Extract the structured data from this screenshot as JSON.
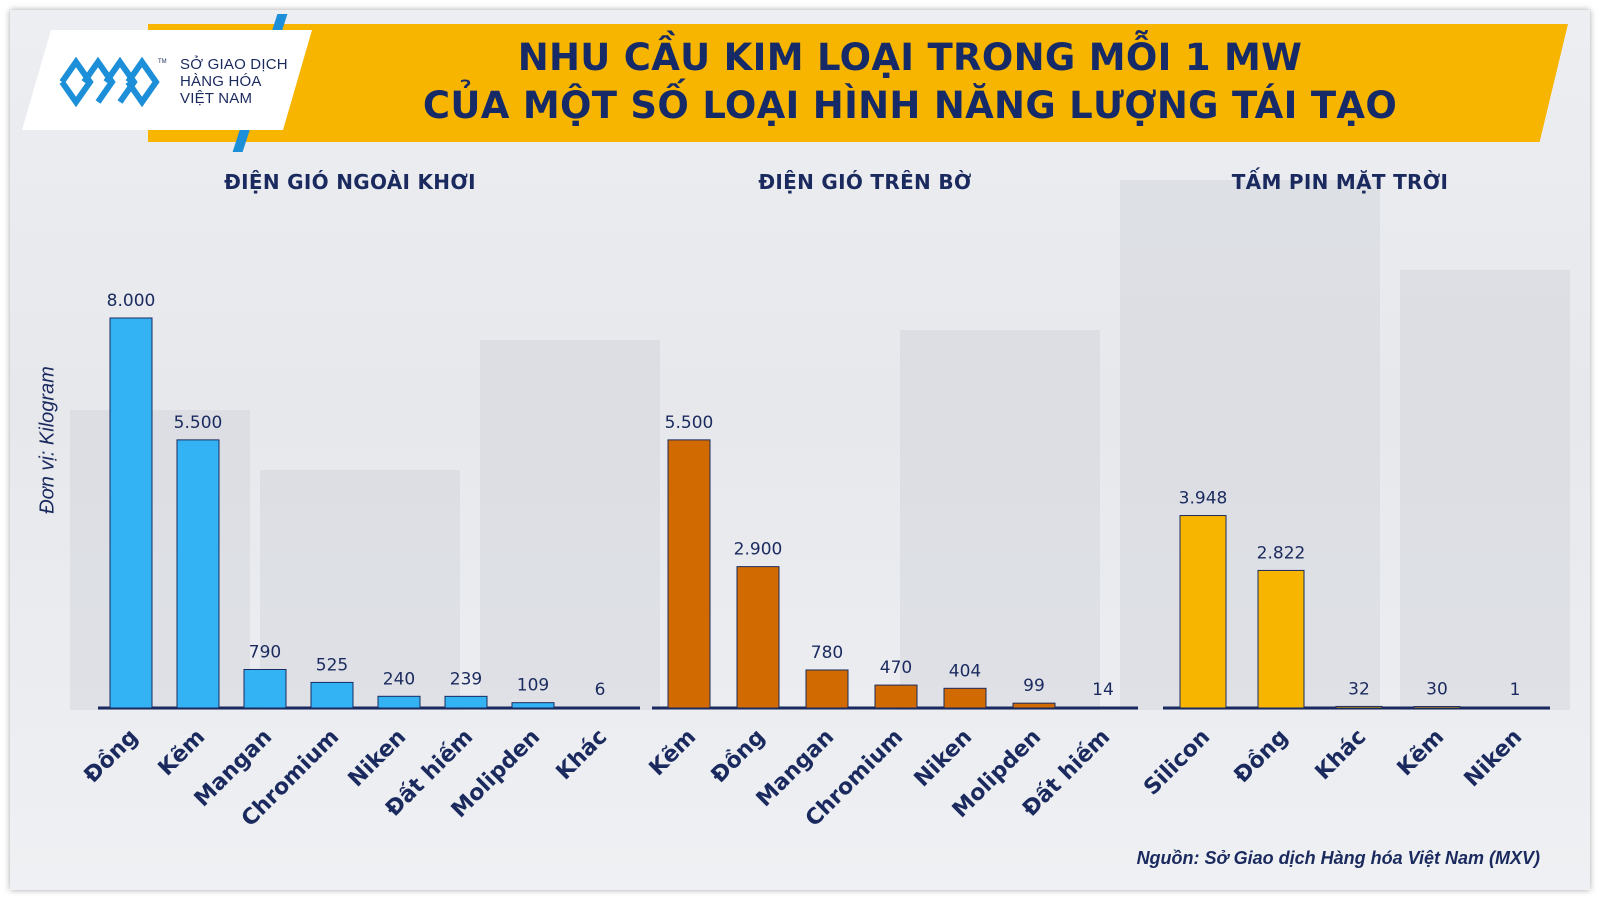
{
  "header": {
    "title_line1": "NHU CẦU KIM LOẠI TRONG MỖI 1 MW",
    "title_line2": "CỦA MỘT SỐ LOẠI HÌNH NĂNG LƯỢNG TÁI TẠO"
  },
  "logo": {
    "line1": "SỞ GIAO DỊCH",
    "line2": "HÀNG HÓA",
    "line3": "VIỆT NAM",
    "tm": "TM",
    "icon": "mxv-logo-mark"
  },
  "unit_label": "Đơn vị: Kilogram",
  "source": "Nguồn: Sở Giao dịch Hàng hóa Việt Nam (MXV)",
  "colors": {
    "banner": "#f7b500",
    "title": "#152a66",
    "offshore": "#33b3f3",
    "onshore": "#d16a00",
    "solar": "#f7b500"
  },
  "chart_data": [
    {
      "type": "bar",
      "title": "ĐIỆN GIÓ NGOÀI KHƠI",
      "categories": [
        "Đồng",
        "Kẽm",
        "Mangan",
        "Chromium",
        "Niken",
        "Đất hiếm",
        "Molipden",
        "Khác"
      ],
      "values": [
        8000,
        5500,
        790,
        525,
        240,
        239,
        109,
        6
      ],
      "value_labels": [
        "8.000",
        "5.500",
        "790",
        "525",
        "240",
        "239",
        "109",
        "6"
      ],
      "color": "#33b3f3",
      "ylim": [
        0,
        8000
      ]
    },
    {
      "type": "bar",
      "title": "ĐIỆN GIÓ TRÊN BỜ",
      "categories": [
        "Kẽm",
        "Đồng",
        "Mangan",
        "Chromium",
        "Niken",
        "Molipden",
        "Đất hiếm"
      ],
      "values": [
        5500,
        2900,
        780,
        470,
        404,
        99,
        14
      ],
      "value_labels": [
        "5.500",
        "2.900",
        "780",
        "470",
        "404",
        "99",
        "14"
      ],
      "color": "#d16a00",
      "ylim": [
        0,
        5500
      ]
    },
    {
      "type": "bar",
      "title": "TẤM PIN MẶT TRỜI",
      "categories": [
        "Silicon",
        "Đồng",
        "Khác",
        "Kẽm",
        "Niken"
      ],
      "values": [
        3948,
        2822,
        32,
        30,
        1
      ],
      "value_labels": [
        "3.948",
        "2.822",
        "32",
        "30",
        "1"
      ],
      "color": "#f7b500",
      "ylim": [
        0,
        3948
      ]
    }
  ]
}
